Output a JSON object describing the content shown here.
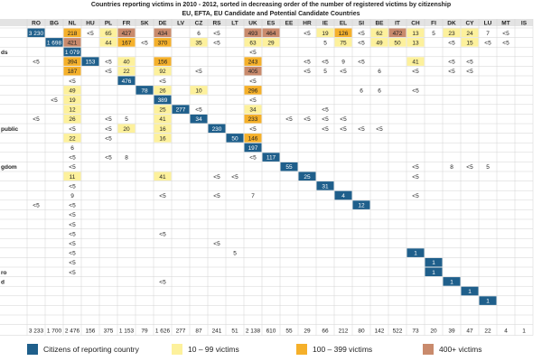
{
  "title": {
    "line1": "Countries reporting victims in 2010 - 2012,  sorted in decreasing order of the number of registered victims by citizenship",
    "line2": "EU, EFTA, EU Candidate and Potential Candidate Countries"
  },
  "colors": {
    "blue": "#1f5f8b",
    "yellow": "#fdf19c",
    "orange": "#f5b02a",
    "brown": "#c98a6c",
    "header": "#e3e3e3",
    "grid": "#d3d3d3",
    "text": "#222222"
  },
  "legend": [
    {
      "label": "Citizens of reporting country",
      "color": "blue"
    },
    {
      "label": "10 – 99 victims",
      "color": "yellow"
    },
    {
      "label": "100 – 399 victims",
      "color": "orange"
    },
    {
      "label": "400+ victims",
      "color": "brown"
    }
  ],
  "chart_data": {
    "type": "heatmap",
    "title": "Countries reporting victims in 2010 - 2012,  sorted in decreasing order of the number of registered victims by citizenship",
    "subtitle": "EU, EFTA, EU Candidate and Potential Candidate Countries",
    "columns": [
      "RO",
      "BG",
      "NL",
      "HU",
      "PL",
      "FR",
      "SK",
      "DE",
      "LV",
      "CZ",
      "RS",
      "LT",
      "UK",
      "ES",
      "EE",
      "HR",
      "IE",
      "EL",
      "SI",
      "BE",
      "IT",
      "CH",
      "FI",
      "DK",
      "CY",
      "LU",
      "MT",
      "IS"
    ],
    "row_labels": [
      "",
      "",
      "ds",
      "",
      "",
      "",
      "",
      "",
      "",
      "",
      "public",
      "",
      "",
      "",
      "gdom",
      "",
      "",
      "",
      "",
      "",
      "",
      "",
      "",
      "",
      "",
      "ro",
      "d",
      "",
      "",
      "",
      ""
    ],
    "cells": [
      [
        [
          0,
          "3 230",
          "blue"
        ],
        [
          2,
          "218",
          "orange"
        ],
        [
          3,
          "<5",
          ""
        ],
        [
          4,
          "65",
          "yellow"
        ],
        [
          5,
          "427",
          "brown"
        ],
        [
          7,
          "434",
          "brown"
        ],
        [
          9,
          "6",
          ""
        ],
        [
          10,
          "<5",
          ""
        ],
        [
          12,
          "493",
          "brown"
        ],
        [
          13,
          "464",
          "brown"
        ],
        [
          15,
          "<5",
          ""
        ],
        [
          16,
          "19",
          "yellow"
        ],
        [
          17,
          "126",
          "orange"
        ],
        [
          18,
          "<5",
          ""
        ],
        [
          19,
          "62",
          "yellow"
        ],
        [
          20,
          "472",
          "brown"
        ],
        [
          21,
          "13",
          "yellow"
        ],
        [
          22,
          "5",
          ""
        ],
        [
          23,
          "23",
          "yellow"
        ],
        [
          24,
          "24",
          "yellow"
        ],
        [
          25,
          "7",
          ""
        ],
        [
          26,
          "<5",
          ""
        ]
      ],
      [
        [
          1,
          "1 698",
          "blue"
        ],
        [
          2,
          "421",
          "brown"
        ],
        [
          4,
          "44",
          "yellow"
        ],
        [
          5,
          "167",
          "orange"
        ],
        [
          6,
          "<5",
          ""
        ],
        [
          7,
          "370",
          "orange"
        ],
        [
          9,
          "35",
          "yellow"
        ],
        [
          10,
          "<5",
          ""
        ],
        [
          12,
          "63",
          "yellow"
        ],
        [
          13,
          "29",
          "yellow"
        ],
        [
          16,
          "5",
          ""
        ],
        [
          17,
          "75",
          "yellow"
        ],
        [
          18,
          "<5",
          ""
        ],
        [
          19,
          "49",
          "yellow"
        ],
        [
          20,
          "50",
          "yellow"
        ],
        [
          21,
          "13",
          "yellow"
        ],
        [
          23,
          "<5",
          ""
        ],
        [
          24,
          "15",
          "yellow"
        ],
        [
          25,
          "<5",
          ""
        ],
        [
          26,
          "<5",
          ""
        ]
      ],
      [
        [
          2,
          "1 079",
          "blue"
        ],
        [
          12,
          "<5",
          ""
        ]
      ],
      [
        [
          0,
          "<5",
          ""
        ],
        [
          2,
          "394",
          "orange"
        ],
        [
          3,
          "153",
          "blue"
        ],
        [
          4,
          "<5",
          ""
        ],
        [
          5,
          "40",
          "yellow"
        ],
        [
          7,
          "156",
          "orange"
        ],
        [
          12,
          "243",
          "orange"
        ],
        [
          15,
          "<5",
          ""
        ],
        [
          16,
          "<5",
          ""
        ],
        [
          17,
          "9",
          ""
        ],
        [
          18,
          "<5",
          ""
        ],
        [
          21,
          "41",
          "yellow"
        ],
        [
          23,
          "<5",
          ""
        ],
        [
          24,
          "<5",
          ""
        ]
      ],
      [
        [
          2,
          "187",
          "orange"
        ],
        [
          4,
          "<5",
          ""
        ],
        [
          5,
          "22",
          "yellow"
        ],
        [
          7,
          "92",
          "yellow"
        ],
        [
          9,
          "<5",
          ""
        ],
        [
          12,
          "405",
          "brown"
        ],
        [
          15,
          "<5",
          ""
        ],
        [
          16,
          "5",
          ""
        ],
        [
          17,
          "<5",
          ""
        ],
        [
          19,
          "6",
          ""
        ],
        [
          21,
          "<5",
          ""
        ],
        [
          23,
          "<5",
          ""
        ],
        [
          24,
          "<5",
          ""
        ]
      ],
      [
        [
          2,
          "<5",
          ""
        ],
        [
          5,
          "476",
          "blue"
        ],
        [
          7,
          "<5",
          ""
        ],
        [
          12,
          "<5",
          ""
        ]
      ],
      [
        [
          2,
          "49",
          "yellow"
        ],
        [
          6,
          "78",
          "blue"
        ],
        [
          7,
          "26",
          "yellow"
        ],
        [
          9,
          "10",
          "yellow"
        ],
        [
          12,
          "296",
          "orange"
        ],
        [
          18,
          "6",
          ""
        ],
        [
          19,
          "6",
          ""
        ],
        [
          21,
          "<5",
          ""
        ]
      ],
      [
        [
          1,
          "<5",
          ""
        ],
        [
          2,
          "19",
          "yellow"
        ],
        [
          7,
          "389",
          "blue"
        ],
        [
          12,
          "<5",
          ""
        ]
      ],
      [
        [
          2,
          "12",
          "yellow"
        ],
        [
          7,
          "25",
          "yellow"
        ],
        [
          8,
          "277",
          "blue"
        ],
        [
          9,
          "<5",
          ""
        ],
        [
          12,
          "34",
          "yellow"
        ],
        [
          16,
          "<5",
          ""
        ]
      ],
      [
        [
          0,
          "<5",
          ""
        ],
        [
          2,
          "26",
          "yellow"
        ],
        [
          4,
          "<5",
          ""
        ],
        [
          5,
          "5",
          ""
        ],
        [
          7,
          "41",
          "yellow"
        ],
        [
          9,
          "34",
          "blue"
        ],
        [
          12,
          "233",
          "orange"
        ],
        [
          14,
          "<5",
          ""
        ],
        [
          15,
          "<5",
          ""
        ],
        [
          16,
          "<5",
          ""
        ],
        [
          17,
          "<5",
          ""
        ]
      ],
      [
        [
          2,
          "<5",
          ""
        ],
        [
          4,
          "<5",
          ""
        ],
        [
          5,
          "20",
          "yellow"
        ],
        [
          7,
          "16",
          "yellow"
        ],
        [
          10,
          "230",
          "blue"
        ],
        [
          12,
          "<5",
          ""
        ],
        [
          16,
          "<5",
          ""
        ],
        [
          17,
          "<5",
          ""
        ],
        [
          18,
          "<5",
          ""
        ],
        [
          19,
          "<5",
          ""
        ]
      ],
      [
        [
          2,
          "22",
          "yellow"
        ],
        [
          4,
          "<5",
          ""
        ],
        [
          7,
          "16",
          "yellow"
        ],
        [
          11,
          "50",
          "blue"
        ],
        [
          12,
          "146",
          "orange"
        ]
      ],
      [
        [
          2,
          "6",
          ""
        ],
        [
          12,
          "197",
          "blue"
        ]
      ],
      [
        [
          2,
          "<5",
          ""
        ],
        [
          4,
          "<5",
          ""
        ],
        [
          5,
          "8",
          ""
        ],
        [
          12,
          "<5",
          ""
        ],
        [
          13,
          "117",
          "blue"
        ]
      ],
      [
        [
          2,
          "<5",
          ""
        ],
        [
          14,
          "55",
          "blue"
        ],
        [
          21,
          "<5",
          ""
        ],
        [
          23,
          "8",
          ""
        ],
        [
          24,
          "<5",
          ""
        ],
        [
          25,
          "5",
          ""
        ]
      ],
      [
        [
          2,
          "11",
          "yellow"
        ],
        [
          7,
          "41",
          "yellow"
        ],
        [
          10,
          "<5",
          ""
        ],
        [
          11,
          "<5",
          ""
        ],
        [
          15,
          "25",
          "blue"
        ],
        [
          21,
          "<5",
          ""
        ]
      ],
      [
        [
          2,
          "<5",
          ""
        ],
        [
          16,
          "31",
          "blue"
        ]
      ],
      [
        [
          2,
          "9",
          ""
        ],
        [
          7,
          "<5",
          ""
        ],
        [
          10,
          "<5",
          ""
        ],
        [
          12,
          "7",
          ""
        ],
        [
          17,
          "4",
          "blue"
        ],
        [
          21,
          "<5",
          ""
        ]
      ],
      [
        [
          0,
          "<5",
          ""
        ],
        [
          2,
          "<5",
          ""
        ],
        [
          18,
          "12",
          "blue"
        ]
      ],
      [
        [
          2,
          "<5",
          ""
        ]
      ],
      [
        [
          2,
          "<5",
          ""
        ]
      ],
      [
        [
          2,
          "<5",
          ""
        ],
        [
          7,
          "<5",
          ""
        ]
      ],
      [
        [
          2,
          "<5",
          ""
        ],
        [
          10,
          "<5",
          ""
        ]
      ],
      [
        [
          2,
          "<5",
          ""
        ],
        [
          11,
          "5",
          ""
        ],
        [
          21,
          "1",
          "blue"
        ]
      ],
      [
        [
          2,
          "<5",
          ""
        ],
        [
          22,
          "1",
          "blue"
        ]
      ],
      [
        [
          2,
          "<5",
          ""
        ],
        [
          22,
          "1",
          "blue"
        ]
      ],
      [
        [
          7,
          "<5",
          ""
        ],
        [
          23,
          "1",
          "blue"
        ]
      ],
      [
        [
          24,
          "1",
          "blue"
        ]
      ],
      [
        [
          25,
          "1",
          "blue"
        ]
      ]
    ],
    "totals": [
      "3 233",
      "1 700",
      "2 476",
      "156",
      "375",
      "1 153",
      "79",
      "1 626",
      "277",
      "87",
      "241",
      "51",
      "2 138",
      "610",
      "55",
      "29",
      "66",
      "212",
      "80",
      "142",
      "522",
      "73",
      "20",
      "39",
      "47",
      "22",
      "4",
      "1"
    ]
  }
}
